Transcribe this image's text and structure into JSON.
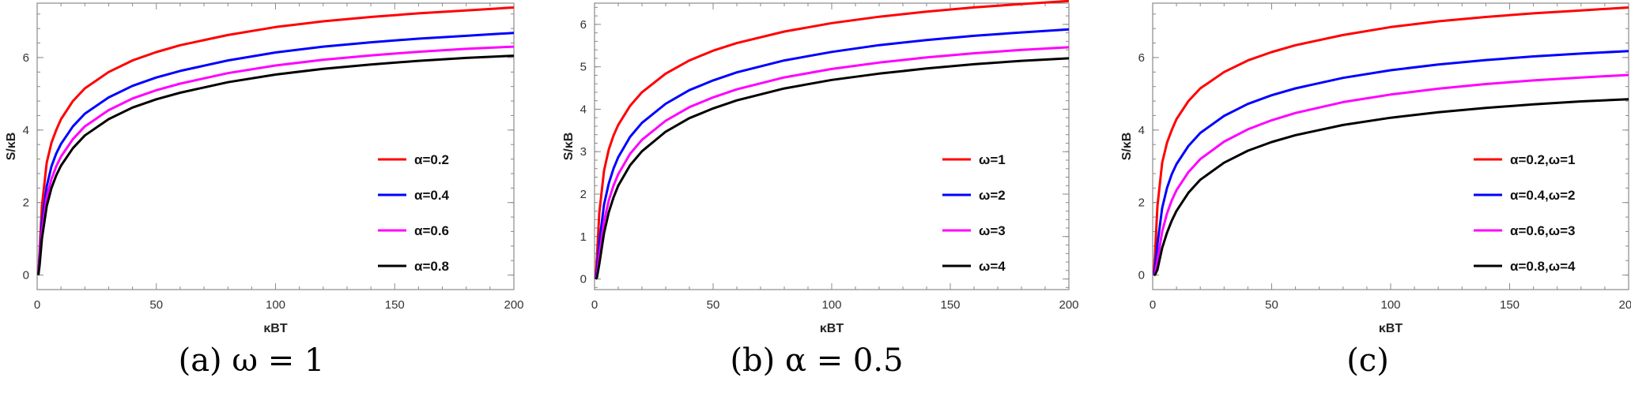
{
  "chart_data": [
    {
      "type": "line",
      "caption": "(a) ω = 1",
      "xlabel": "κBT",
      "ylabel": "S/κB",
      "xlim": [
        0,
        200
      ],
      "ylim": [
        -0.4,
        7.5
      ],
      "xticks": [
        0,
        50,
        100,
        150,
        200
      ],
      "yticks": [
        0,
        2,
        4,
        6
      ],
      "legend_position": "right",
      "series": [
        {
          "name": "α=0.2",
          "color": "#ff0000",
          "x": [
            0.5,
            1,
            2,
            4,
            6,
            8,
            10,
            15,
            20,
            30,
            40,
            50,
            60,
            80,
            100,
            120,
            140,
            160,
            180,
            200
          ],
          "y": [
            0.05,
            0.6,
            1.9,
            3.1,
            3.65,
            4.0,
            4.3,
            4.8,
            5.15,
            5.6,
            5.92,
            6.15,
            6.34,
            6.62,
            6.84,
            7.0,
            7.12,
            7.22,
            7.3,
            7.38
          ]
        },
        {
          "name": "α=0.4",
          "color": "#0000ff",
          "x": [
            0.5,
            1,
            2,
            4,
            6,
            8,
            10,
            15,
            20,
            30,
            40,
            50,
            60,
            80,
            100,
            120,
            140,
            160,
            180,
            200
          ],
          "y": [
            0.02,
            0.45,
            1.45,
            2.45,
            3.0,
            3.35,
            3.62,
            4.1,
            4.45,
            4.9,
            5.22,
            5.45,
            5.63,
            5.92,
            6.14,
            6.3,
            6.42,
            6.52,
            6.6,
            6.68
          ]
        },
        {
          "name": "α=0.6",
          "color": "#ff00ff",
          "x": [
            0.5,
            1,
            2,
            4,
            6,
            8,
            10,
            15,
            20,
            30,
            40,
            50,
            60,
            80,
            100,
            120,
            140,
            160,
            180,
            200
          ],
          "y": [
            0.01,
            0.35,
            1.2,
            2.15,
            2.65,
            3.0,
            3.27,
            3.75,
            4.1,
            4.55,
            4.87,
            5.1,
            5.28,
            5.57,
            5.78,
            5.94,
            6.06,
            6.16,
            6.24,
            6.3
          ]
        },
        {
          "name": "α=0.8",
          "color": "#000000",
          "x": [
            0.5,
            1,
            2,
            4,
            6,
            8,
            10,
            15,
            20,
            30,
            40,
            50,
            60,
            80,
            100,
            120,
            140,
            160,
            180,
            200
          ],
          "y": [
            0.0,
            0.25,
            1.0,
            1.9,
            2.4,
            2.75,
            3.02,
            3.5,
            3.85,
            4.3,
            4.62,
            4.85,
            5.03,
            5.32,
            5.53,
            5.69,
            5.81,
            5.91,
            5.99,
            6.05
          ]
        }
      ]
    },
    {
      "type": "line",
      "caption": "(b) α = 0.5",
      "xlabel": "κBT",
      "ylabel": "S/κB",
      "xlim": [
        0,
        200
      ],
      "ylim": [
        -0.25,
        6.5
      ],
      "xticks": [
        0,
        50,
        100,
        150,
        200
      ],
      "yticks": [
        0,
        1,
        2,
        3,
        4,
        5,
        6
      ],
      "legend_position": "right",
      "series": [
        {
          "name": "ω=1",
          "color": "#ff0000",
          "x": [
            0.5,
            1,
            2,
            4,
            6,
            8,
            10,
            15,
            20,
            30,
            40,
            50,
            60,
            80,
            100,
            120,
            140,
            160,
            180,
            200
          ],
          "y": [
            0.02,
            0.5,
            1.55,
            2.55,
            3.05,
            3.38,
            3.63,
            4.08,
            4.4,
            4.84,
            5.15,
            5.38,
            5.56,
            5.83,
            6.03,
            6.18,
            6.3,
            6.4,
            6.48,
            6.55
          ]
        },
        {
          "name": "ω=2",
          "color": "#0000ff",
          "x": [
            0.5,
            1,
            2,
            4,
            6,
            8,
            10,
            15,
            20,
            30,
            40,
            50,
            60,
            80,
            100,
            120,
            140,
            160,
            180,
            200
          ],
          "y": [
            0.0,
            0.2,
            0.85,
            1.75,
            2.25,
            2.6,
            2.87,
            3.35,
            3.68,
            4.13,
            4.45,
            4.68,
            4.87,
            5.15,
            5.35,
            5.51,
            5.63,
            5.73,
            5.81,
            5.88
          ]
        },
        {
          "name": "ω=3",
          "color": "#ff00ff",
          "x": [
            0.5,
            1,
            2,
            4,
            6,
            8,
            10,
            15,
            20,
            30,
            40,
            50,
            60,
            80,
            100,
            120,
            140,
            160,
            180,
            200
          ],
          "y": [
            0.0,
            0.08,
            0.55,
            1.35,
            1.85,
            2.2,
            2.47,
            2.95,
            3.28,
            3.73,
            4.05,
            4.28,
            4.47,
            4.75,
            4.95,
            5.1,
            5.22,
            5.32,
            5.4,
            5.46
          ]
        },
        {
          "name": "ω=4",
          "color": "#000000",
          "x": [
            0.5,
            1,
            2,
            4,
            6,
            8,
            10,
            15,
            20,
            30,
            40,
            50,
            60,
            80,
            100,
            120,
            140,
            160,
            180,
            200
          ],
          "y": [
            0.0,
            0.03,
            0.35,
            1.08,
            1.57,
            1.92,
            2.2,
            2.68,
            3.01,
            3.47,
            3.79,
            4.02,
            4.21,
            4.49,
            4.69,
            4.84,
            4.96,
            5.06,
            5.14,
            5.2
          ]
        }
      ]
    },
    {
      "type": "line",
      "caption": "(c)",
      "xlabel": "κBT",
      "ylabel": "S/κB",
      "xlim": [
        0,
        200
      ],
      "ylim": [
        -0.4,
        7.5
      ],
      "xticks": [
        0,
        50,
        100,
        150,
        200
      ],
      "yticks": [
        0,
        2,
        4,
        6
      ],
      "legend_position": "right",
      "series": [
        {
          "name": "α=0.2,ω=1",
          "color": "#ff0000",
          "x": [
            0.5,
            1,
            2,
            4,
            6,
            8,
            10,
            15,
            20,
            30,
            40,
            50,
            60,
            80,
            100,
            120,
            140,
            160,
            180,
            200
          ],
          "y": [
            0.05,
            0.6,
            1.9,
            3.1,
            3.65,
            4.0,
            4.3,
            4.8,
            5.15,
            5.6,
            5.92,
            6.15,
            6.34,
            6.62,
            6.84,
            7.0,
            7.12,
            7.22,
            7.3,
            7.38
          ]
        },
        {
          "name": "α=0.4,ω=2",
          "color": "#0000ff",
          "x": [
            0.5,
            1,
            2,
            4,
            6,
            8,
            10,
            15,
            20,
            30,
            40,
            50,
            60,
            80,
            100,
            120,
            140,
            160,
            180,
            200
          ],
          "y": [
            0.0,
            0.2,
            0.85,
            1.85,
            2.4,
            2.78,
            3.06,
            3.56,
            3.92,
            4.39,
            4.72,
            4.96,
            5.15,
            5.44,
            5.65,
            5.81,
            5.93,
            6.03,
            6.11,
            6.18
          ]
        },
        {
          "name": "α=0.6,ω=3",
          "color": "#ff00ff",
          "x": [
            0.5,
            1,
            2,
            4,
            6,
            8,
            10,
            15,
            20,
            30,
            40,
            50,
            60,
            80,
            100,
            120,
            140,
            160,
            180,
            200
          ],
          "y": [
            0.0,
            0.05,
            0.4,
            1.2,
            1.7,
            2.06,
            2.34,
            2.84,
            3.2,
            3.68,
            4.02,
            4.27,
            4.47,
            4.77,
            4.98,
            5.14,
            5.27,
            5.37,
            5.45,
            5.52
          ]
        },
        {
          "name": "α=0.8,ω=4",
          "color": "#000000",
          "x": [
            0.5,
            1,
            2,
            4,
            6,
            8,
            10,
            15,
            20,
            30,
            40,
            50,
            60,
            80,
            100,
            120,
            140,
            160,
            180,
            200
          ],
          "y": [
            0.0,
            0.01,
            0.15,
            0.75,
            1.17,
            1.5,
            1.77,
            2.27,
            2.63,
            3.1,
            3.43,
            3.67,
            3.86,
            4.14,
            4.34,
            4.49,
            4.61,
            4.71,
            4.79,
            4.85
          ]
        }
      ]
    }
  ]
}
